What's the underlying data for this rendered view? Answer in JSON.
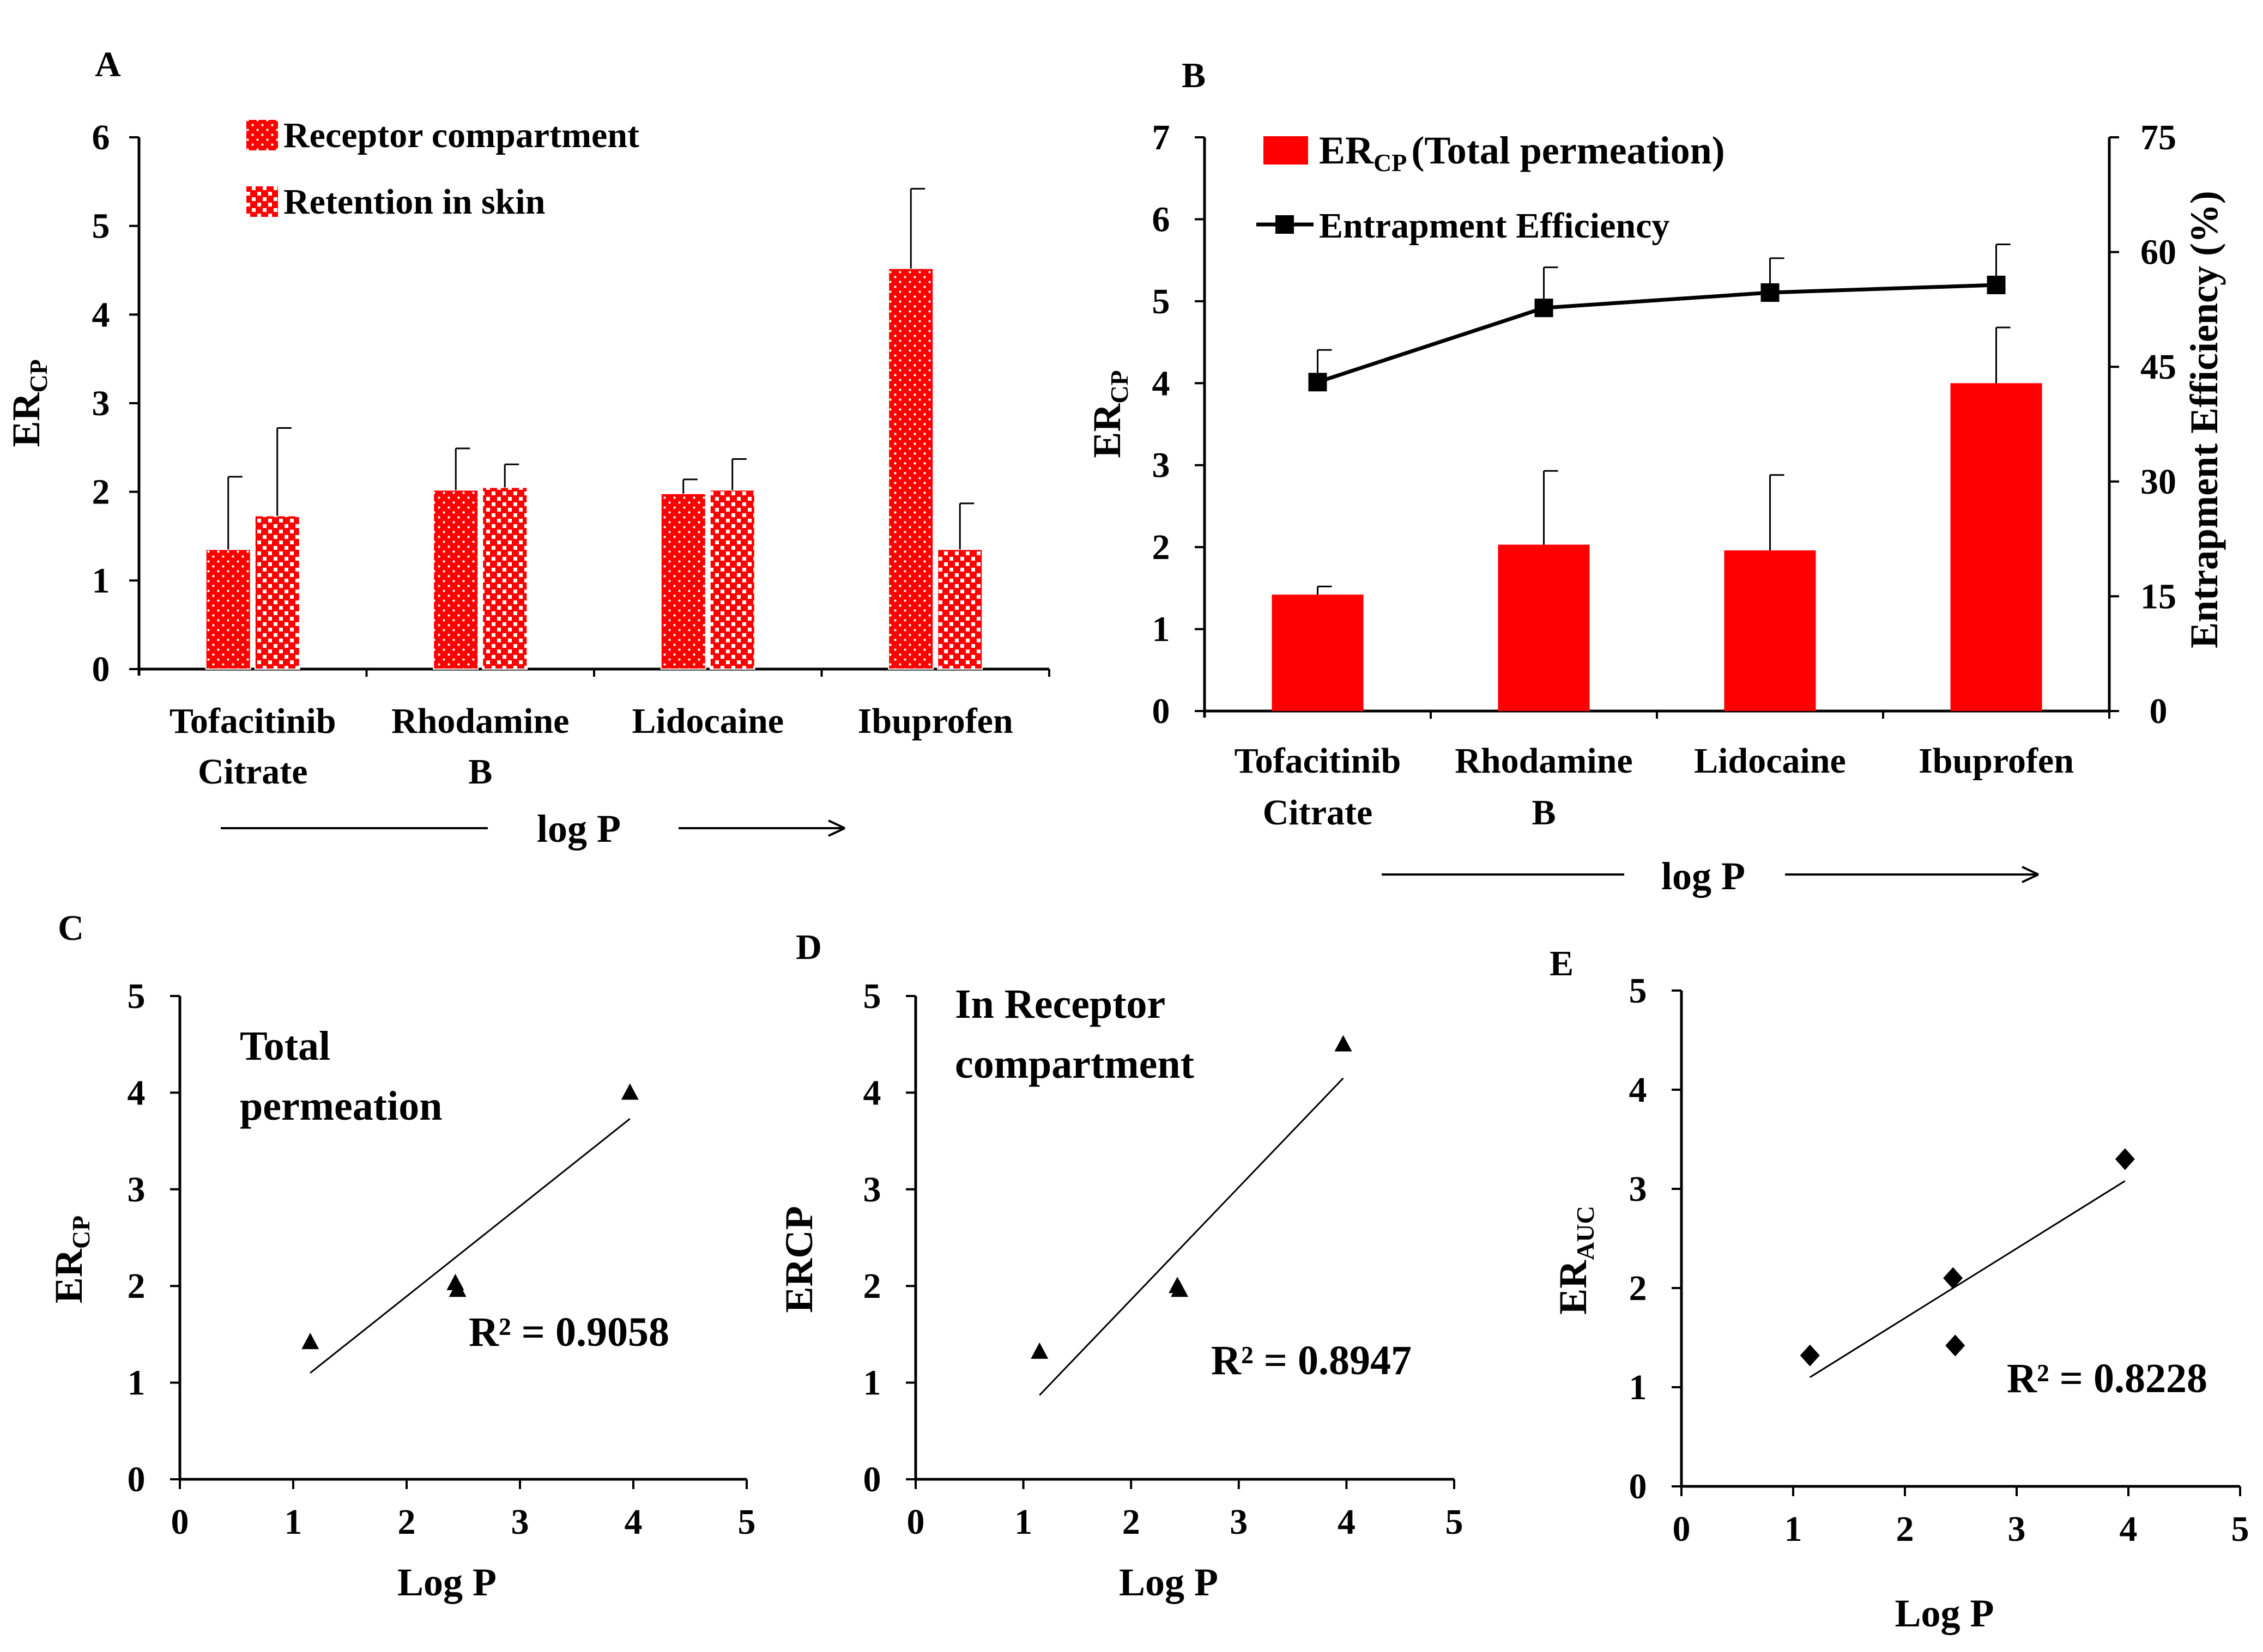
{
  "chart_data": [
    {
      "panel": "A",
      "type": "bar",
      "categories": [
        [
          "Tofacitinib",
          "Citrate"
        ],
        [
          "Rhodamine",
          "B"
        ],
        [
          "Lidocaine"
        ],
        [
          "Ibuprofen"
        ]
      ],
      "series": [
        {
          "name": "Receptor compartment",
          "values": [
            1.35,
            2.02,
            1.98,
            4.52
          ],
          "errors": [
            0.82,
            0.47,
            0.16,
            0.9
          ],
          "pattern": "dots",
          "color": "#ff0000"
        },
        {
          "name": "Retention in skin",
          "values": [
            1.73,
            2.05,
            2.02,
            1.35
          ],
          "errors": [
            0.99,
            0.26,
            0.35,
            0.52
          ],
          "pattern": "checker",
          "color": "#ff0000"
        }
      ],
      "ylabel": "ER",
      "ylabel_sub": "CP",
      "ylim": [
        0,
        6
      ],
      "yticks": [
        0,
        1,
        2,
        3,
        4,
        5,
        6
      ],
      "xarrow_label": "log P",
      "legend": "top-center"
    },
    {
      "panel": "B",
      "type": "bar+line",
      "categories": [
        [
          "Tofacitinib",
          "Citrate"
        ],
        [
          "Rhodamine",
          "B"
        ],
        [
          "Lidocaine"
        ],
        [
          "Ibuprofen"
        ]
      ],
      "bars": {
        "name": "ER",
        "name_sub": "CP",
        "name_suffix": "(Total permeation)",
        "values": [
          1.42,
          2.03,
          1.96,
          4.0
        ],
        "errors": [
          0.1,
          0.9,
          0.92,
          0.68
        ],
        "color": "#ff0000"
      },
      "line": {
        "name": "Entrapment Efficiency",
        "values": [
          43,
          52.7,
          54.7,
          55.7
        ],
        "errors": [
          4.2,
          5.3,
          4.5,
          5.3
        ],
        "color": "#000000"
      },
      "ylabel": "ER",
      "ylabel_sub": "CP",
      "ylim": [
        0,
        7
      ],
      "yticks": [
        0,
        1,
        2,
        3,
        4,
        5,
        6,
        7
      ],
      "y2label": "Entrapment Efficiency (%)",
      "y2lim": [
        0,
        75
      ],
      "y2ticks": [
        0,
        15,
        30,
        45,
        60,
        75
      ],
      "xarrow_label": "log P",
      "legend": "top-left"
    },
    {
      "panel": "C",
      "type": "scatter",
      "annotation": [
        "Total",
        "permeation"
      ],
      "x": [
        1.15,
        2.43,
        2.45,
        3.97
      ],
      "y": [
        1.42,
        2.03,
        1.96,
        4.0
      ],
      "marker": "triangle",
      "trendline": {
        "x": [
          1.15,
          3.97
        ],
        "y": [
          1.1,
          3.73
        ]
      },
      "r2": "R² = 0.9058",
      "xlabel": "Log P",
      "ylabel": "ER",
      "ylabel_sub": "CP",
      "xlim": [
        0,
        5
      ],
      "ylim": [
        0,
        5
      ],
      "xticks": [
        0,
        1,
        2,
        3,
        4,
        5
      ],
      "yticks": [
        0,
        1,
        2,
        3,
        4,
        5
      ]
    },
    {
      "panel": "D",
      "type": "scatter",
      "annotation": [
        "In Receptor",
        "compartment"
      ],
      "x": [
        1.15,
        2.43,
        2.45,
        3.97
      ],
      "y": [
        1.32,
        2.0,
        1.96,
        4.5
      ],
      "marker": "triangle",
      "trendline": {
        "x": [
          1.15,
          3.97
        ],
        "y": [
          0.87,
          4.15
        ]
      },
      "r2": "R² = 0.8947",
      "xlabel": "Log P",
      "ylabel": "ERCP",
      "xlim": [
        0,
        5
      ],
      "ylim": [
        0,
        5
      ],
      "xticks": [
        0,
        1,
        2,
        3,
        4,
        5
      ],
      "yticks": [
        0,
        1,
        2,
        3,
        4,
        5
      ]
    },
    {
      "panel": "E",
      "type": "scatter",
      "x": [
        1.15,
        2.43,
        2.45,
        3.97
      ],
      "y": [
        1.32,
        2.1,
        1.42,
        3.3
      ],
      "marker": "diamond",
      "trendline": {
        "x": [
          1.15,
          3.97
        ],
        "y": [
          1.1,
          3.08
        ]
      },
      "r2": "R² = 0.8228",
      "xlabel": "Log P",
      "ylabel": "ER",
      "ylabel_sub": "AUC",
      "xlim": [
        0,
        5
      ],
      "ylim": [
        0,
        5
      ],
      "xticks": [
        0,
        1,
        2,
        3,
        4,
        5
      ],
      "yticks": [
        0,
        1,
        2,
        3,
        4,
        5
      ]
    }
  ]
}
